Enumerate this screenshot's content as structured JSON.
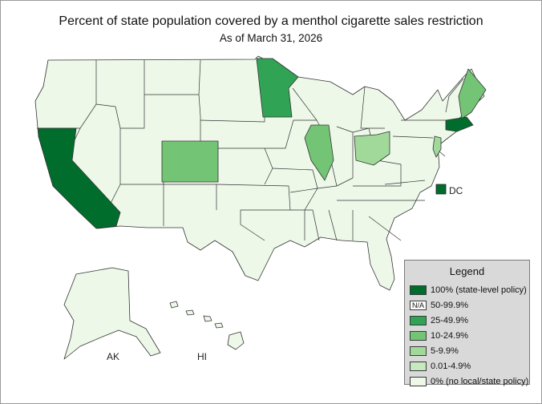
{
  "title": "Percent of state population covered by a menthol cigarette sales restriction",
  "subtitle": "As of March 31, 2026",
  "labels": {
    "dc": "DC",
    "ak": "AK",
    "hi": "HI"
  },
  "legend": {
    "title": "Legend",
    "items": [
      {
        "label": "100% (state-level policy)",
        "color": "#006d2c"
      },
      {
        "label": "50-99.9%",
        "color": "#ffffff",
        "swatch_text": "N/A"
      },
      {
        "label": "25-49.9%",
        "color": "#31a354"
      },
      {
        "label": "10-24.9%",
        "color": "#74c476"
      },
      {
        "label": "5-9.9%",
        "color": "#a1d99b"
      },
      {
        "label": "0.01-4.9%",
        "color": "#c7e9c0"
      },
      {
        "label": "0% (no local/state policy)",
        "color": "#edf8e9"
      }
    ]
  },
  "state_categories": {
    "California": "100% (state-level policy)",
    "Massachusetts": "100% (state-level policy)",
    "DC": "100% (state-level policy)",
    "Minnesota": "25-49.9%",
    "Colorado": "10-24.9%",
    "Illinois": "10-24.9%",
    "Maine": "10-24.9%",
    "Ohio": "5-9.9%",
    "New Jersey": "5-9.9%",
    "Other states": "0% (no local/state policy)"
  }
}
